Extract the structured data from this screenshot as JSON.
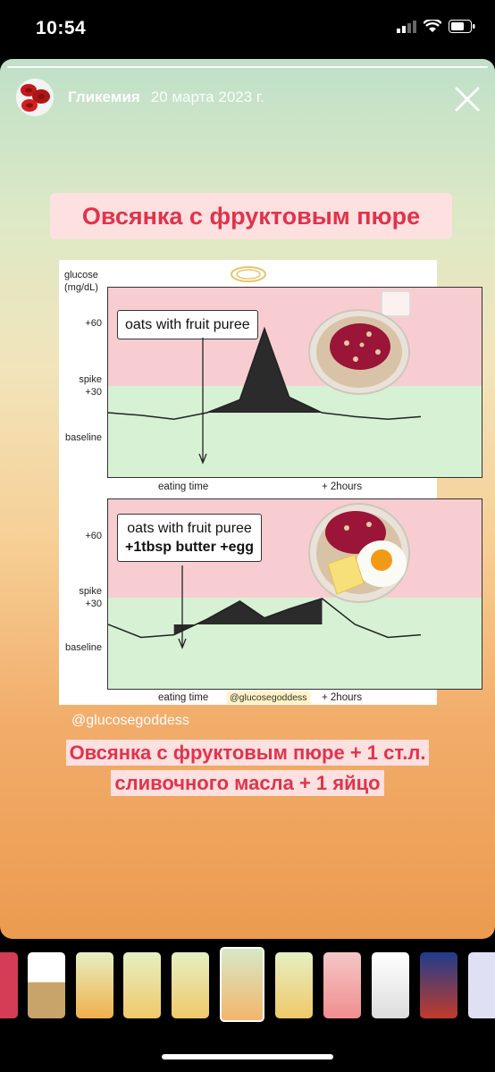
{
  "status_bar": {
    "time": "10:54"
  },
  "story": {
    "username": "Гликемия",
    "date": "20 марта 2023 г.",
    "title": "Овсянка с фруктовым пюре",
    "credit": "@glucosegoddess",
    "caption_line1": "Овсянка с фруктовым пюре + 1 ст.л.",
    "caption_line2": "сливочного масла + 1 яйцо"
  },
  "chart_data": [
    {
      "type": "area",
      "title": "",
      "ylabel": "glucose (mg/dL)",
      "yticks": [
        "+60",
        "spike +30",
        "baseline"
      ],
      "xticks": [
        "eating time",
        "+ 2hours"
      ],
      "annotation": "oats with fruit puree",
      "series": [
        {
          "x": [
            0,
            20,
            40,
            60,
            80,
            95,
            110,
            130,
            150,
            170,
            190
          ],
          "y": [
            0,
            -2,
            -5,
            0,
            10,
            65,
            12,
            0,
            -3,
            -5,
            -3
          ]
        }
      ]
    },
    {
      "type": "area",
      "title": "",
      "ylabel": "",
      "yticks": [
        "+60",
        "spike +30",
        "baseline"
      ],
      "xticks": [
        "eating time",
        "@glucosegoddess",
        "+ 2hours"
      ],
      "annotation_line1": "oats with fruit puree",
      "annotation_line2": "+1tbsp butter +egg",
      "series": [
        {
          "x": [
            0,
            20,
            40,
            60,
            80,
            95,
            110,
            130,
            150,
            170,
            190
          ],
          "y": [
            0,
            -10,
            -8,
            4,
            18,
            5,
            12,
            20,
            0,
            -10,
            -8
          ]
        }
      ]
    }
  ],
  "icons": {
    "status": [
      "signal-icon",
      "wifi-icon",
      "battery-icon"
    ],
    "close": "close-icon",
    "halo": "halo-icon"
  },
  "colors": {
    "accent": "#e0334c",
    "pink_band": "#f8cdd1",
    "green_band": "#d6f1d3"
  }
}
